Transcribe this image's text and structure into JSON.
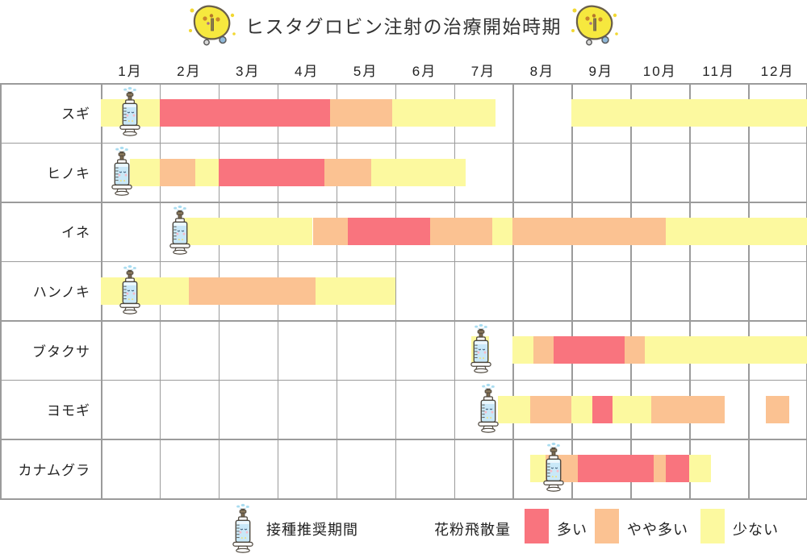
{
  "title": "ヒスタグロビン注射の治療開始時期",
  "colors": {
    "high": "#F9747E",
    "mid": "#FBC292",
    "low": "#FCF99F",
    "grid": "#9B9B9B",
    "text": "#333333",
    "icon_yellow": "#F6E83E",
    "syringe_blue": "#C9E8F8"
  },
  "legend": {
    "syringe_label": "接種推奨期間",
    "pollen_label": "花粉飛散量",
    "levels": [
      {
        "key": "high",
        "label": "多い"
      },
      {
        "key": "mid",
        "label": "やや多い"
      },
      {
        "key": "low",
        "label": "少ない"
      }
    ]
  },
  "chart_data": {
    "type": "timeline",
    "title": "ヒスタグロビン注射の治療開始時期",
    "months": [
      "1月",
      "2月",
      "3月",
      "4月",
      "5月",
      "6月",
      "7月",
      "8月",
      "9月",
      "10月",
      "11月",
      "12月"
    ],
    "level_names": {
      "high": "多い",
      "mid": "やや多い",
      "low": "少ない"
    },
    "syringe_meaning": "接種推奨期間",
    "rows": [
      {
        "label": "スギ",
        "syringe_month": 0.5,
        "segments": [
          {
            "start": 0.0,
            "end": 1.0,
            "level": "low"
          },
          {
            "start": 1.0,
            "end": 3.9,
            "level": "high"
          },
          {
            "start": 3.9,
            "end": 4.95,
            "level": "mid"
          },
          {
            "start": 4.95,
            "end": 6.7,
            "level": "low"
          },
          {
            "start": 8.0,
            "end": 12.0,
            "level": "low"
          }
        ]
      },
      {
        "label": "ヒノキ",
        "syringe_month": 0.35,
        "segments": [
          {
            "start": 0.5,
            "end": 1.0,
            "level": "low"
          },
          {
            "start": 1.0,
            "end": 1.6,
            "level": "mid"
          },
          {
            "start": 1.6,
            "end": 2.0,
            "level": "low"
          },
          {
            "start": 2.0,
            "end": 3.8,
            "level": "high"
          },
          {
            "start": 3.8,
            "end": 4.6,
            "level": "mid"
          },
          {
            "start": 4.6,
            "end": 6.2,
            "level": "low"
          }
        ]
      },
      {
        "label": "イネ",
        "syringe_month": 1.34,
        "segments": [
          {
            "start": 1.4,
            "end": 3.6,
            "level": "low"
          },
          {
            "start": 3.6,
            "end": 4.2,
            "level": "mid"
          },
          {
            "start": 4.2,
            "end": 5.6,
            "level": "high"
          },
          {
            "start": 5.6,
            "end": 6.65,
            "level": "mid"
          },
          {
            "start": 6.65,
            "end": 7.0,
            "level": "low"
          },
          {
            "start": 7.0,
            "end": 9.6,
            "level": "mid"
          },
          {
            "start": 9.6,
            "end": 12.0,
            "level": "low"
          }
        ]
      },
      {
        "label": "ハンノキ",
        "syringe_month": 0.5,
        "segments": [
          {
            "start": 0.0,
            "end": 1.5,
            "level": "low"
          },
          {
            "start": 1.5,
            "end": 3.65,
            "level": "mid"
          },
          {
            "start": 3.65,
            "end": 5.0,
            "level": "low"
          }
        ]
      },
      {
        "label": "ブタクサ",
        "syringe_month": 6.46,
        "segments": [
          {
            "start": 6.3,
            "end": 6.6,
            "level": "low"
          },
          {
            "start": 7.0,
            "end": 7.35,
            "level": "low"
          },
          {
            "start": 7.35,
            "end": 7.7,
            "level": "mid"
          },
          {
            "start": 7.7,
            "end": 8.9,
            "level": "high"
          },
          {
            "start": 8.9,
            "end": 9.25,
            "level": "mid"
          },
          {
            "start": 9.25,
            "end": 12.0,
            "level": "low"
          }
        ]
      },
      {
        "label": "ヨモギ",
        "syringe_month": 6.58,
        "segments": [
          {
            "start": 6.75,
            "end": 7.3,
            "level": "low"
          },
          {
            "start": 7.3,
            "end": 8.0,
            "level": "mid"
          },
          {
            "start": 8.0,
            "end": 8.35,
            "level": "low"
          },
          {
            "start": 8.35,
            "end": 8.7,
            "level": "high"
          },
          {
            "start": 8.7,
            "end": 9.35,
            "level": "low"
          },
          {
            "start": 9.35,
            "end": 10.6,
            "level": "mid"
          },
          {
            "start": 11.3,
            "end": 11.7,
            "level": "mid"
          }
        ]
      },
      {
        "label": "カナムグラ",
        "syringe_month": 7.7,
        "segments": [
          {
            "start": 7.3,
            "end": 7.55,
            "level": "low"
          },
          {
            "start": 7.55,
            "end": 8.1,
            "level": "mid"
          },
          {
            "start": 8.1,
            "end": 9.4,
            "level": "high"
          },
          {
            "start": 9.4,
            "end": 9.6,
            "level": "mid"
          },
          {
            "start": 9.6,
            "end": 10.0,
            "level": "high"
          },
          {
            "start": 10.0,
            "end": 10.37,
            "level": "low"
          }
        ]
      }
    ]
  }
}
